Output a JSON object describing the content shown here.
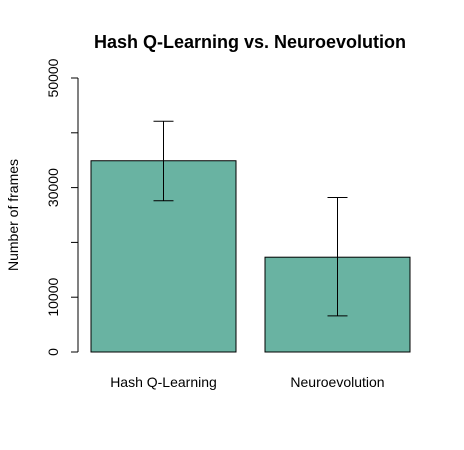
{
  "chart_data": {
    "type": "bar",
    "title": "Hash Q-Learning vs. Neuroevolution",
    "ylabel": "Number of frames",
    "xlabel": "",
    "categories": [
      "Hash Q-Learning",
      "Neuroevolution"
    ],
    "values": [
      34900,
      17300
    ],
    "error_low": [
      27600,
      6600
    ],
    "error_high": [
      42100,
      28200
    ],
    "ylim": [
      0,
      50000
    ],
    "yticks": [
      0,
      10000,
      30000,
      50000
    ],
    "ytick_labels": [
      "0",
      "10000",
      "30000",
      "50000"
    ],
    "bar_color": "#69b3a2",
    "grid": false,
    "legend": "none"
  }
}
